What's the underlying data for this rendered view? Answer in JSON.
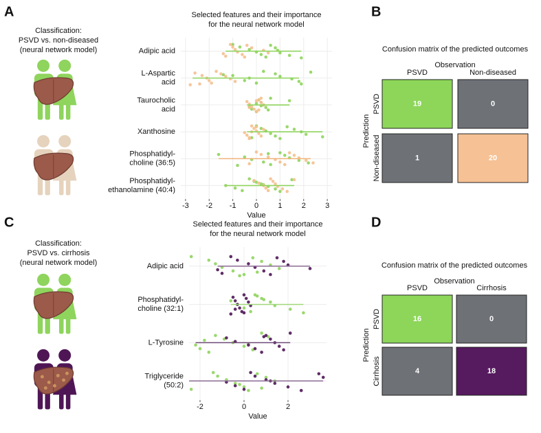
{
  "panel_labels": [
    "A",
    "B",
    "C",
    "D"
  ],
  "descriptions": [
    [
      "Classification:",
      "PSVD vs. non-diseased",
      "(neural network model)"
    ],
    [
      "Classification:",
      "PSVD vs. cirrhosis",
      "(neural network model)"
    ]
  ],
  "chart_data": [
    {
      "type": "strip",
      "title": [
        "Selected features and their importance",
        "for the neural network model"
      ],
      "x_label": "Value",
      "categories": [
        [
          "Adipic acid"
        ],
        [
          "L-Aspartic",
          "acid"
        ],
        [
          "Taurocholic",
          "acid"
        ],
        [
          "Xanthosine"
        ],
        [
          "Phosphatidyl-",
          "choline (36:5)"
        ],
        [
          "Phosphatidyl-",
          "ethanolamine (40:4)"
        ]
      ],
      "xlim": [
        -3.2,
        3.2
      ],
      "xticks": [
        -3,
        -2,
        -1,
        0,
        1,
        2,
        3
      ],
      "grid": true,
      "series": [
        {
          "color": "#8fd45d",
          "values": [
            [
              -1.0,
              -0.7,
              -0.3,
              0,
              0.2,
              0.4,
              0.6,
              0.8,
              0.9,
              1.0,
              1.4,
              1.9
            ],
            [
              -1.0,
              -0.3,
              -0.5,
              0,
              0.3,
              0.8,
              1.0,
              1.5,
              1.8,
              1.9,
              2.3,
              -1.4
            ],
            [
              -0.3,
              -0.2,
              0,
              0.1,
              0.2,
              0.3,
              0.4,
              0.5,
              0.6,
              1.4,
              0,
              0.2
            ],
            [
              -0.2,
              0,
              0.2,
              0.4,
              0.6,
              0.8,
              1.0,
              1.3,
              1.6,
              1.9,
              2.1,
              2.8
            ],
            [
              -1.6,
              -0.5,
              -0.2,
              0.3,
              0.6,
              1.0,
              1.2,
              1.4,
              1.8,
              2.2,
              -0.8,
              0.5
            ],
            [
              -1.3,
              -0.9,
              -0.6,
              -0.3,
              -0.1,
              0.2,
              0.5,
              0.8,
              1.0,
              1.5,
              0,
              0.3
            ]
          ]
        },
        {
          "color": "#f5c08f",
          "values": [
            [
              -1.4,
              -1.3,
              -1.1,
              -1.0,
              -0.9,
              -0.8,
              -0.6,
              -0.5,
              -0.4,
              -0.2,
              0.3,
              0.5
            ],
            [
              -2.8,
              -2.6,
              -2.3,
              -2.1,
              -2.0,
              -1.9,
              -1.7,
              -1.5,
              -1.3,
              -1.1,
              -0.9,
              -2.4
            ],
            [
              -0.4,
              -0.3,
              -0.2,
              -0.1,
              0,
              0.1,
              0.2,
              0.3,
              -0.3,
              0.1,
              0.2,
              0
            ],
            [
              -0.5,
              -0.4,
              -0.3,
              -0.2,
              -0.1,
              0,
              0.1,
              0.2,
              -0.3,
              0,
              0.3,
              -0.2
            ],
            [
              -0.3,
              0,
              0.2,
              0.5,
              0.8,
              1.0,
              1.2,
              1.4,
              1.6,
              1.8,
              2.1,
              2.4
            ],
            [
              -0.1,
              0.1,
              0.3,
              0.4,
              0.5,
              0.6,
              0.7,
              0.8,
              0.9,
              1.1,
              1.3,
              1.6
            ]
          ]
        }
      ],
      "ranges": [
        [
          -1.3,
          1.9
        ],
        [
          -2.7,
          1.8
        ],
        [
          -0.4,
          1.4
        ],
        [
          -0.4,
          2.8
        ],
        [
          -1.6,
          2.3
        ],
        [
          -1.3,
          1.6
        ]
      ],
      "range_colors": [
        "#8fd45d",
        "#8fd45d",
        "#8fd45d",
        "#8fd45d",
        "#f0b47c",
        "#8fd45d"
      ]
    },
    {
      "type": "heatmap",
      "title": "Confusion matrix of the predicted outcomes",
      "x_label": "Observation",
      "y_label": "Prediction",
      "columns": [
        "PSVD",
        "Non-diseased"
      ],
      "rows": [
        "PSVD",
        "Non-diseased"
      ],
      "values": [
        [
          19,
          0
        ],
        [
          1,
          20
        ]
      ],
      "colors": [
        [
          "#8dd65a",
          "#6e7176"
        ],
        [
          "#6e7176",
          "#f5c195"
        ]
      ]
    },
    {
      "type": "strip",
      "title": [
        "Selected features and their importance",
        "for the neural network model"
      ],
      "x_label": "Value",
      "categories": [
        [
          "Adipic acid"
        ],
        [
          "Phosphatidyl-",
          "choline (32:1)"
        ],
        [
          "L-Tyrosine"
        ],
        [
          "Triglyceride",
          "(50:2)"
        ]
      ],
      "xlim": [
        -2.5,
        3.75
      ],
      "xticks": [
        -2,
        0,
        2
      ],
      "grid": true,
      "series": [
        {
          "color": "#8fd45d",
          "values": [
            [
              -2.4,
              -1.6,
              -1.3,
              -1.0,
              -0.5,
              0,
              0.4,
              0.8,
              1.2,
              1.6,
              0.6,
              -0.2
            ],
            [
              -0.6,
              -0.3,
              0,
              0.3,
              0.5,
              0.8,
              1.2,
              1.4,
              2.1,
              2.7,
              0.6,
              0.9
            ],
            [
              -2.2,
              -2.0,
              -1.6,
              -1.3,
              -0.9,
              -0.5,
              0,
              0.4,
              0.8,
              1.1,
              -1.8,
              0.2
            ],
            [
              -2.4,
              -1.4,
              -1.2,
              -0.8,
              -0.4,
              0,
              0.2,
              0.6,
              1.0,
              1.4,
              -0.2,
              0.8
            ]
          ]
        },
        {
          "color": "#4f1656",
          "values": [
            [
              -1.2,
              -1.0,
              -0.6,
              -0.3,
              0.2,
              0.5,
              0.9,
              1.2,
              1.5,
              1.8,
              2.0,
              3.0
            ],
            [
              -0.6,
              -0.5,
              -0.4,
              -0.3,
              -0.2,
              -0.1,
              0,
              0.1,
              0.2,
              0.3,
              -0.4,
              0
            ],
            [
              -0.8,
              -0.4,
              0.2,
              0.5,
              0.8,
              1.0,
              1.2,
              1.4,
              1.6,
              1.8,
              2.1,
              0.9
            ],
            [
              -0.8,
              -0.4,
              0,
              0.3,
              0.5,
              1.0,
              1.4,
              2.0,
              2.6,
              3.4,
              3.6,
              1.2
            ]
          ]
        }
      ],
      "ranges": [
        [
          -1.2,
          3.0
        ],
        [
          -0.6,
          2.7
        ],
        [
          -2.2,
          2.1
        ],
        [
          -2.5,
          3.6
        ]
      ],
      "range_colors": [
        "#8a6a94",
        "#9fd87a",
        "#6e4a78",
        "#8a6a94"
      ]
    },
    {
      "type": "heatmap",
      "title": "Confusion matrix of the predicted outcomes",
      "x_label": "Observation",
      "y_label": "Prediction",
      "columns": [
        "PSVD",
        "Cirrhosis"
      ],
      "rows": [
        "PSVD",
        "Cirrhosis"
      ],
      "values": [
        [
          16,
          0
        ],
        [
          4,
          18
        ]
      ],
      "colors": [
        [
          "#8dd65a",
          "#6e7176"
        ],
        [
          "#6e7176",
          "#561a5f"
        ]
      ]
    }
  ]
}
